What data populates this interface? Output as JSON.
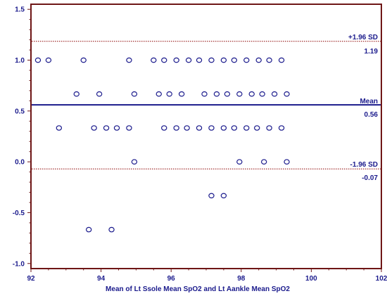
{
  "chart_data": {
    "type": "scatter",
    "title": "",
    "xlabel": "Mean of Lt Ssole Mean SpO2 and Lt Aankle Mean SpO2",
    "ylabel": "",
    "xlim": [
      92,
      102
    ],
    "ylim": [
      -1.05,
      1.55
    ],
    "x_ticks": [
      "92",
      "94",
      "96",
      "98",
      "100",
      "102"
    ],
    "y_ticks": [
      "1.5",
      "1.0",
      "0.5",
      "0.0",
      "-0.5",
      "-1.0"
    ],
    "grid": false,
    "reference_lines": {
      "upper": {
        "label": "+1.96 SD",
        "value_label": "1.19",
        "value": 1.185,
        "style": "dotted",
        "color": "#8b0000"
      },
      "mean": {
        "label": "Mean",
        "value_label": "0.56",
        "value": 0.56,
        "style": "solid",
        "color": "#1a1a8c"
      },
      "lower": {
        "label": "-1.96 SD",
        "value_label": "-0.07",
        "value": -0.07,
        "style": "dotted",
        "color": "#8b0000"
      }
    },
    "series": [
      {
        "marker": "open-circle",
        "color": "#1a1a8c",
        "points": [
          [
            92.2,
            1.0
          ],
          [
            92.5,
            1.0
          ],
          [
            93.5,
            1.0
          ],
          [
            94.8,
            1.0
          ],
          [
            95.5,
            1.0
          ],
          [
            95.8,
            1.0
          ],
          [
            96.15,
            1.0
          ],
          [
            96.5,
            1.0
          ],
          [
            96.8,
            1.0
          ],
          [
            97.15,
            1.0
          ],
          [
            97.5,
            1.0
          ],
          [
            97.8,
            1.0
          ],
          [
            98.15,
            1.0
          ],
          [
            98.5,
            1.0
          ],
          [
            98.8,
            1.0
          ],
          [
            99.15,
            1.0
          ],
          [
            93.3,
            0.667
          ],
          [
            93.95,
            0.667
          ],
          [
            94.95,
            0.667
          ],
          [
            95.65,
            0.667
          ],
          [
            95.95,
            0.667
          ],
          [
            96.3,
            0.667
          ],
          [
            96.95,
            0.667
          ],
          [
            97.3,
            0.667
          ],
          [
            97.6,
            0.667
          ],
          [
            97.95,
            0.667
          ],
          [
            98.3,
            0.667
          ],
          [
            98.6,
            0.667
          ],
          [
            98.95,
            0.667
          ],
          [
            99.3,
            0.667
          ],
          [
            92.8,
            0.333
          ],
          [
            93.8,
            0.333
          ],
          [
            94.15,
            0.333
          ],
          [
            94.45,
            0.333
          ],
          [
            94.8,
            0.333
          ],
          [
            95.8,
            0.333
          ],
          [
            96.15,
            0.333
          ],
          [
            96.45,
            0.333
          ],
          [
            96.8,
            0.333
          ],
          [
            97.15,
            0.333
          ],
          [
            97.5,
            0.333
          ],
          [
            97.8,
            0.333
          ],
          [
            98.15,
            0.333
          ],
          [
            98.45,
            0.333
          ],
          [
            98.8,
            0.333
          ],
          [
            99.15,
            0.333
          ],
          [
            94.95,
            0.0
          ],
          [
            97.95,
            0.0
          ],
          [
            98.65,
            0.0
          ],
          [
            99.3,
            0.0
          ],
          [
            97.15,
            -0.333
          ],
          [
            97.5,
            -0.333
          ],
          [
            93.65,
            -0.667
          ],
          [
            94.3,
            -0.667
          ]
        ]
      }
    ]
  }
}
